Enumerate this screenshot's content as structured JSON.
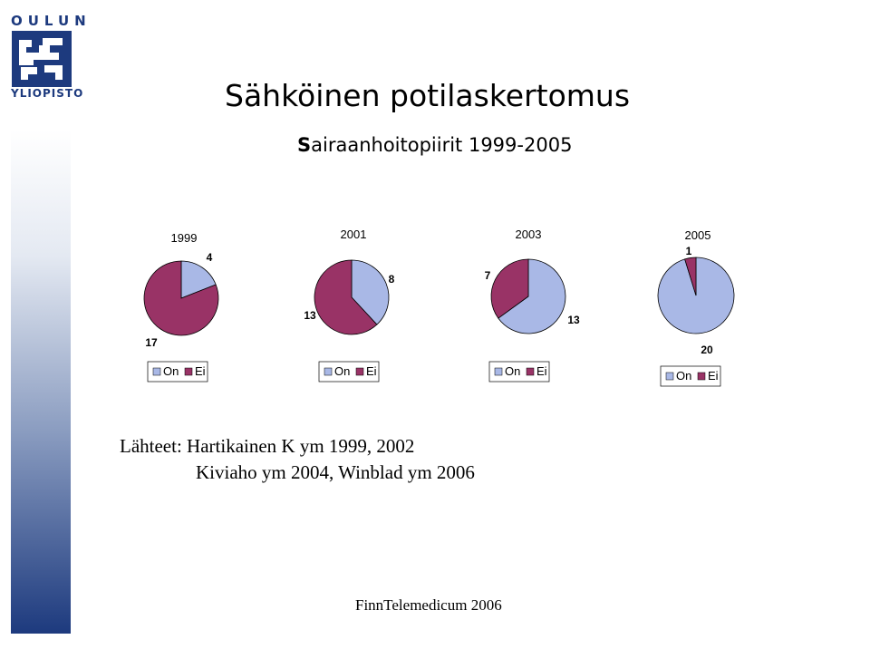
{
  "logo": {
    "top_text": "OULUN",
    "bottom_text": "YLIOPISTO"
  },
  "title": "Sähköinen potilaskertomus",
  "subtitle": "Sairaanhoitopiirit 1999-2005",
  "colors": {
    "on": "#a9b8e6",
    "ei": "#993366",
    "sidebar_dark": "#1d3a7e"
  },
  "chart_data": [
    {
      "type": "pie",
      "title": "1999",
      "categories": [
        "On",
        "Ei"
      ],
      "values": [
        4,
        17
      ],
      "colors": [
        "#a9b8e6",
        "#993366"
      ],
      "legend": "bottom"
    },
    {
      "type": "pie",
      "title": "2001",
      "categories": [
        "On",
        "Ei"
      ],
      "values": [
        8,
        13
      ],
      "colors": [
        "#a9b8e6",
        "#993366"
      ],
      "legend": "bottom"
    },
    {
      "type": "pie",
      "title": "2003",
      "categories": [
        "On",
        "Ei"
      ],
      "values": [
        13,
        7
      ],
      "colors": [
        "#a9b8e6",
        "#993366"
      ],
      "legend": "bottom"
    },
    {
      "type": "pie",
      "title": "2005",
      "categories": [
        "On",
        "Ei"
      ],
      "values": [
        20,
        1
      ],
      "colors": [
        "#a9b8e6",
        "#993366"
      ],
      "legend": "bottom"
    }
  ],
  "sources": {
    "line1": "Lähteet: Hartikainen K ym 1999, 2002",
    "line2": "Kiviaho ym 2004, Winblad ym 2006"
  },
  "footer": "FinnTelemedicum 2006"
}
